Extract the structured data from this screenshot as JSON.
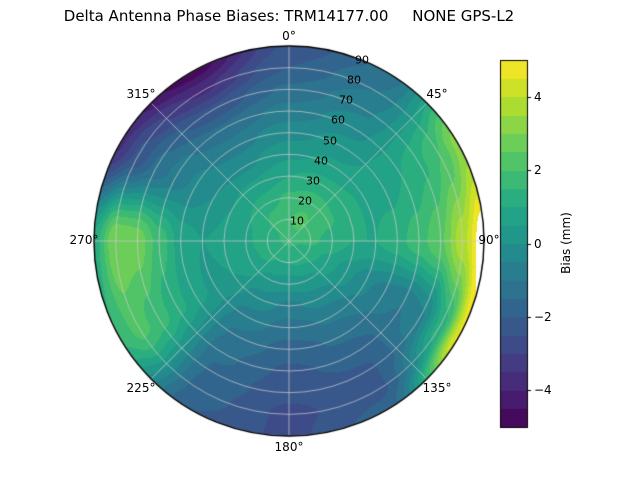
{
  "chart_data": {
    "type": "heatmap",
    "projection": "polar",
    "title": "Delta Antenna Phase Biases: TRM14177.00     NONE GPS-L2",
    "colormap": "viridis",
    "colormap_stops": [
      "#440154",
      "#482475",
      "#414487",
      "#355f8d",
      "#2a788e",
      "#21918c",
      "#22a884",
      "#44bf70",
      "#7ad151",
      "#bddf26",
      "#fde725"
    ],
    "over_color": "#ffffff",
    "vmin": -5,
    "vmax": 5,
    "contour_step": 0.5,
    "azimuth_deg": [
      0,
      30,
      60,
      90,
      120,
      150,
      180,
      210,
      240,
      270,
      300,
      330,
      360
    ],
    "zenith_deg": [
      0,
      10,
      20,
      30,
      40,
      50,
      60,
      70,
      80,
      90
    ],
    "values_mm": [
      [
        1.6,
        2.0,
        1.6,
        1.0,
        0.4,
        -0.2,
        -0.8,
        -1.4,
        -2.0,
        -2.4
      ],
      [
        1.6,
        2.2,
        1.8,
        1.2,
        0.6,
        0.2,
        -0.2,
        -0.6,
        -1.0,
        -1.4
      ],
      [
        1.6,
        1.9,
        1.6,
        1.2,
        0.9,
        0.8,
        1.0,
        1.4,
        2.0,
        3.2
      ],
      [
        1.6,
        1.6,
        1.3,
        1.0,
        1.0,
        1.3,
        1.8,
        2.4,
        3.8,
        5.5
      ],
      [
        1.6,
        1.3,
        0.8,
        0.2,
        -0.4,
        -0.8,
        -1.0,
        -0.6,
        1.2,
        4.6
      ],
      [
        1.6,
        1.1,
        0.4,
        -0.3,
        -0.9,
        -1.4,
        -1.8,
        -2.1,
        -2.2,
        -1.8
      ],
      [
        1.6,
        1.0,
        0.2,
        -0.6,
        -1.2,
        -1.7,
        -2.1,
        -2.4,
        -2.6,
        -2.6
      ],
      [
        1.6,
        1.0,
        0.4,
        -0.2,
        -0.7,
        -1.1,
        -1.4,
        -1.6,
        -1.8,
        -2.0
      ],
      [
        1.6,
        1.2,
        0.8,
        0.5,
        0.4,
        0.7,
        1.2,
        1.8,
        2.2,
        1.6
      ],
      [
        1.6,
        1.3,
        0.9,
        0.6,
        0.5,
        0.8,
        1.8,
        2.8,
        3.0,
        1.2
      ],
      [
        1.6,
        1.4,
        1.0,
        0.5,
        0.0,
        -0.4,
        -0.8,
        -1.4,
        -2.4,
        -3.6
      ],
      [
        1.6,
        1.8,
        1.3,
        0.6,
        -0.1,
        -0.7,
        -1.4,
        -2.4,
        -3.6,
        -4.8
      ],
      [
        1.6,
        2.0,
        1.6,
        1.0,
        0.4,
        -0.2,
        -0.8,
        -1.4,
        -2.0,
        -2.4
      ]
    ],
    "angle_labels": [
      "0°",
      "45°",
      "90°",
      "135°",
      "180°",
      "225°",
      "270°",
      "315°"
    ],
    "ring_labels": [
      "10",
      "20",
      "30",
      "40",
      "50",
      "60",
      "70",
      "80",
      "90"
    ],
    "grid": true,
    "colorbar": {
      "label": "Bias (mm)",
      "ticks": [
        "4",
        "2",
        "0",
        "−2",
        "−4"
      ],
      "tick_values": [
        4,
        2,
        0,
        -2,
        -4
      ]
    }
  }
}
